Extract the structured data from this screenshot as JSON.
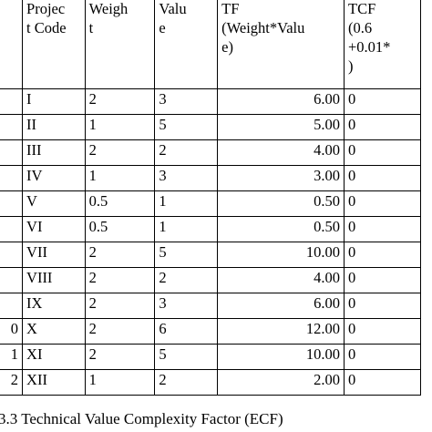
{
  "table": {
    "headers": [
      {
        "lines": [
          ""
        ]
      },
      {
        "lines": [
          "Projec",
          "t Code"
        ]
      },
      {
        "lines": [
          "Weigh",
          "t"
        ]
      },
      {
        "lines": [
          "Valu",
          "e"
        ]
      },
      {
        "lines": [
          "TF",
          "(Weight*Valu",
          "e)"
        ]
      },
      {
        "lines": [
          "TCF",
          "(0.6",
          "+0.01*",
          ")"
        ]
      }
    ],
    "rows": [
      {
        "no": "",
        "code": "I",
        "weight": "2",
        "value": "3",
        "tf": "6.00",
        "tcf": "0"
      },
      {
        "no": "",
        "code": "II",
        "weight": "1",
        "value": "5",
        "tf": "5.00",
        "tcf": "0"
      },
      {
        "no": "",
        "code": "III",
        "weight": "2",
        "value": "2",
        "tf": "4.00",
        "tcf": "0"
      },
      {
        "no": "",
        "code": "IV",
        "weight": "1",
        "value": "3",
        "tf": "3.00",
        "tcf": "0"
      },
      {
        "no": "",
        "code": "V",
        "weight": "0.5",
        "value": "1",
        "tf": "0.50",
        "tcf": "0"
      },
      {
        "no": "",
        "code": "VI",
        "weight": "0.5",
        "value": "1",
        "tf": "0.50",
        "tcf": "0"
      },
      {
        "no": "",
        "code": "VII",
        "weight": "2",
        "value": "5",
        "tf": "10.00",
        "tcf": "0"
      },
      {
        "no": "",
        "code": "VIII",
        "weight": "2",
        "value": "2",
        "tf": "4.00",
        "tcf": "0"
      },
      {
        "no": "",
        "code": "IX",
        "weight": "2",
        "value": "3",
        "tf": "6.00",
        "tcf": "0"
      },
      {
        "no": "0",
        "code": "X",
        "weight": "2",
        "value": "6",
        "tf": "12.00",
        "tcf": "0"
      },
      {
        "no": "1",
        "code": "XI",
        "weight": "2",
        "value": "5",
        "tf": "10.00",
        "tcf": "0"
      },
      {
        "no": "2",
        "code": "XII",
        "weight": "1",
        "value": "2",
        "tf": "2.00",
        "tcf": "0"
      }
    ]
  },
  "caption": "3.3 Technical Value Complexity Factor (ECF)"
}
